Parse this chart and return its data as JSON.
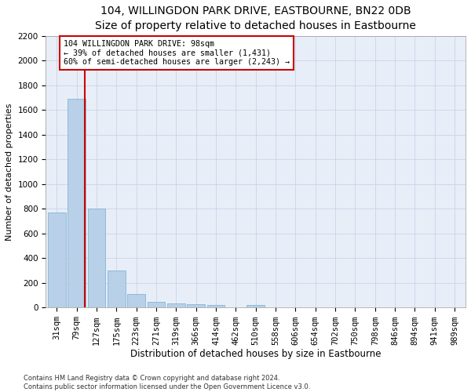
{
  "title": "104, WILLINGDON PARK DRIVE, EASTBOURNE, BN22 0DB",
  "subtitle": "Size of property relative to detached houses in Eastbourne",
  "xlabel": "Distribution of detached houses by size in Eastbourne",
  "ylabel": "Number of detached properties",
  "bar_labels": [
    "31sqm",
    "79sqm",
    "127sqm",
    "175sqm",
    "223sqm",
    "271sqm",
    "319sqm",
    "366sqm",
    "414sqm",
    "462sqm",
    "510sqm",
    "558sqm",
    "606sqm",
    "654sqm",
    "702sqm",
    "750sqm",
    "798sqm",
    "846sqm",
    "894sqm",
    "941sqm",
    "989sqm"
  ],
  "bar_values": [
    770,
    1690,
    800,
    300,
    110,
    45,
    32,
    27,
    22,
    0,
    22,
    0,
    0,
    0,
    0,
    0,
    0,
    0,
    0,
    0,
    0
  ],
  "bar_color": "#b8d0e8",
  "bar_edge_color": "#7aadd0",
  "vline_color": "#cc0000",
  "vline_x": 1.42,
  "annotation_text": "104 WILLINGDON PARK DRIVE: 98sqm\n← 39% of detached houses are smaller (1,431)\n60% of semi-detached houses are larger (2,243) →",
  "annotation_box_color": "#ffffff",
  "annotation_box_edge": "#cc0000",
  "ylim": [
    0,
    2200
  ],
  "yticks": [
    0,
    200,
    400,
    600,
    800,
    1000,
    1200,
    1400,
    1600,
    1800,
    2000,
    2200
  ],
  "footer": "Contains HM Land Registry data © Crown copyright and database right 2024.\nContains public sector information licensed under the Open Government Licence v3.0.",
  "plot_bg_color": "#e8eef8",
  "title_fontsize": 10,
  "tick_fontsize": 7.5,
  "ylabel_fontsize": 8,
  "xlabel_fontsize": 8.5
}
